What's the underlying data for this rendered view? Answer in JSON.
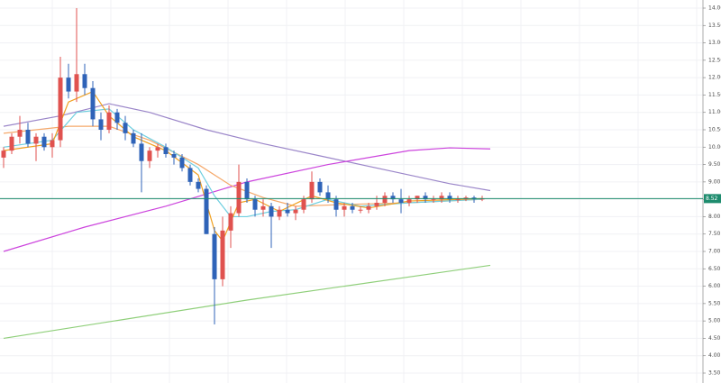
{
  "chart_data": {
    "type": "candlestick",
    "ylim": [
      3.5,
      14.0
    ],
    "yticks": [
      {
        "value": 14,
        "label": "14.00"
      },
      {
        "value": 13.5,
        "label": "13.50"
      },
      {
        "value": 13,
        "label": "13.00"
      },
      {
        "value": 12.5,
        "label": "12.50"
      },
      {
        "value": 12,
        "label": "12.00"
      },
      {
        "value": 11.5,
        "label": "11.50"
      },
      {
        "value": 11,
        "label": "11.00"
      },
      {
        "value": 10.5,
        "label": "10.50"
      },
      {
        "value": 10,
        "label": "10.00"
      },
      {
        "value": 9.5,
        "label": "9.50"
      },
      {
        "value": 9,
        "label": "9.00"
      },
      {
        "value": 8.5,
        "label": "8.50"
      },
      {
        "value": 8,
        "label": "8.00"
      },
      {
        "value": 7.5,
        "label": "7.50"
      },
      {
        "value": 7,
        "label": "7.00"
      },
      {
        "value": 6.5,
        "label": "6.50"
      },
      {
        "value": 6,
        "label": "6.00"
      },
      {
        "value": 5.5,
        "label": "5.50"
      },
      {
        "value": 5,
        "label": "5.00"
      },
      {
        "value": 4.5,
        "label": "4.50"
      },
      {
        "value": 4,
        "label": "4.00"
      },
      {
        "value": 3.5,
        "label": "3.50"
      }
    ],
    "grid": true,
    "up_color": "#e0524f",
    "down_color": "#2f63b8",
    "last_price": 8.52,
    "last_price_color": "#1e8c6e",
    "candles": [
      [
        9.7,
        10.0,
        9.4,
        9.9
      ],
      [
        9.9,
        10.4,
        9.8,
        10.3
      ],
      [
        10.3,
        10.9,
        10.1,
        10.5
      ],
      [
        10.5,
        10.7,
        10.0,
        10.1
      ],
      [
        10.1,
        10.4,
        9.6,
        10.3
      ],
      [
        10.3,
        10.4,
        9.9,
        10.0
      ],
      [
        10.0,
        10.4,
        9.7,
        10.2
      ],
      [
        10.2,
        12.6,
        10.0,
        12.0
      ],
      [
        12.0,
        12.4,
        11.4,
        11.6
      ],
      [
        11.6,
        14.0,
        11.3,
        12.1
      ],
      [
        12.1,
        12.4,
        11.5,
        11.7
      ],
      [
        11.7,
        11.9,
        10.6,
        10.8
      ],
      [
        10.8,
        11.0,
        10.2,
        10.5
      ],
      [
        10.5,
        11.2,
        10.4,
        11.0
      ],
      [
        11.0,
        11.1,
        10.5,
        10.7
      ],
      [
        10.7,
        10.9,
        10.2,
        10.4
      ],
      [
        10.4,
        10.5,
        10.0,
        10.1
      ],
      [
        10.1,
        10.4,
        8.7,
        9.6
      ],
      [
        9.6,
        10.0,
        9.4,
        9.9
      ],
      [
        9.9,
        10.1,
        9.7,
        10.0
      ],
      [
        10.0,
        10.1,
        9.7,
        9.8
      ],
      [
        9.8,
        9.9,
        9.5,
        9.7
      ],
      [
        9.7,
        9.8,
        9.3,
        9.4
      ],
      [
        9.4,
        9.5,
        8.9,
        9.0
      ],
      [
        9.0,
        9.1,
        8.7,
        8.8
      ],
      [
        8.8,
        8.9,
        7.5,
        7.5
      ],
      [
        7.5,
        7.7,
        4.9,
        6.2
      ],
      [
        6.2,
        8.0,
        6.0,
        7.6
      ],
      [
        7.6,
        8.3,
        7.1,
        8.1
      ],
      [
        8.1,
        9.5,
        8.0,
        9.0
      ],
      [
        9.0,
        9.1,
        8.4,
        8.5
      ],
      [
        8.5,
        8.6,
        8.0,
        8.2
      ],
      [
        8.2,
        8.5,
        8.0,
        8.3
      ],
      [
        8.3,
        8.4,
        7.1,
        8.0
      ],
      [
        8.0,
        8.3,
        7.9,
        8.2
      ],
      [
        8.2,
        8.4,
        8.0,
        8.1
      ],
      [
        8.1,
        8.3,
        7.9,
        8.2
      ],
      [
        8.2,
        8.6,
        8.1,
        8.5
      ],
      [
        8.5,
        9.3,
        8.4,
        9.0
      ],
      [
        9.0,
        9.1,
        8.6,
        8.7
      ],
      [
        8.7,
        8.9,
        8.4,
        8.5
      ],
      [
        8.5,
        8.6,
        8.0,
        8.2
      ],
      [
        8.2,
        8.4,
        8.0,
        8.3
      ],
      [
        8.3,
        8.4,
        8.1,
        8.2
      ],
      [
        8.2,
        8.3,
        8.1,
        8.2
      ],
      [
        8.2,
        8.4,
        8.1,
        8.3
      ],
      [
        8.3,
        8.6,
        8.2,
        8.4
      ],
      [
        8.4,
        8.7,
        8.3,
        8.6
      ],
      [
        8.6,
        8.7,
        8.4,
        8.5
      ],
      [
        8.5,
        8.8,
        8.1,
        8.4
      ],
      [
        8.4,
        8.6,
        8.3,
        8.5
      ],
      [
        8.5,
        8.6,
        8.4,
        8.6
      ],
      [
        8.6,
        8.7,
        8.4,
        8.5
      ],
      [
        8.5,
        8.6,
        8.4,
        8.5
      ],
      [
        8.5,
        8.7,
        8.4,
        8.6
      ],
      [
        8.6,
        8.7,
        8.4,
        8.5
      ],
      [
        8.5,
        8.6,
        8.4,
        8.5
      ],
      [
        8.5,
        8.6,
        8.45,
        8.55
      ],
      [
        8.55,
        8.6,
        8.4,
        8.5
      ],
      [
        8.5,
        8.6,
        8.45,
        8.52
      ]
    ],
    "lines": [
      {
        "color": "#9b86c9",
        "x": [
          0,
          7,
          13,
          18,
          25,
          32,
          40,
          48,
          55,
          60
        ],
        "values": [
          10.6,
          10.9,
          11.25,
          11.0,
          10.5,
          10.1,
          9.7,
          9.3,
          8.95,
          8.75
        ]
      },
      {
        "color": "#cc44dd",
        "x": [
          0,
          10,
          20,
          30,
          40,
          50,
          55,
          60
        ],
        "values": [
          7.0,
          7.7,
          8.3,
          9.0,
          9.5,
          9.9,
          9.98,
          9.95
        ]
      },
      {
        "color": "#8fcf7a",
        "x": [
          0,
          30,
          60
        ],
        "values": [
          4.5,
          5.6,
          6.6
        ]
      },
      {
        "color": "#f5a86a",
        "x": [
          0,
          8,
          13,
          18,
          24,
          28,
          32,
          36,
          42,
          50,
          59
        ],
        "values": [
          10.4,
          10.6,
          10.6,
          10.2,
          9.5,
          8.9,
          8.55,
          8.3,
          8.35,
          8.4,
          8.5
        ]
      },
      {
        "color": "#6fcfe0",
        "x": [
          0,
          6,
          9,
          13,
          16,
          20,
          24,
          26,
          28,
          30,
          33,
          36,
          40,
          44,
          50,
          59
        ],
        "values": [
          10.0,
          10.2,
          11.0,
          11.1,
          10.5,
          10.0,
          9.4,
          8.6,
          8.0,
          8.0,
          8.15,
          8.2,
          8.5,
          8.3,
          8.4,
          8.5
        ]
      },
      {
        "color": "#f0a020",
        "x": [
          0,
          6,
          8,
          11,
          13,
          16,
          20,
          24,
          26,
          27,
          29,
          31,
          34,
          38,
          41,
          45,
          50,
          59
        ],
        "values": [
          9.9,
          10.1,
          11.3,
          11.6,
          10.9,
          10.3,
          9.9,
          9.2,
          7.6,
          7.3,
          8.4,
          8.5,
          8.15,
          8.6,
          8.4,
          8.25,
          8.45,
          8.52
        ]
      }
    ]
  }
}
